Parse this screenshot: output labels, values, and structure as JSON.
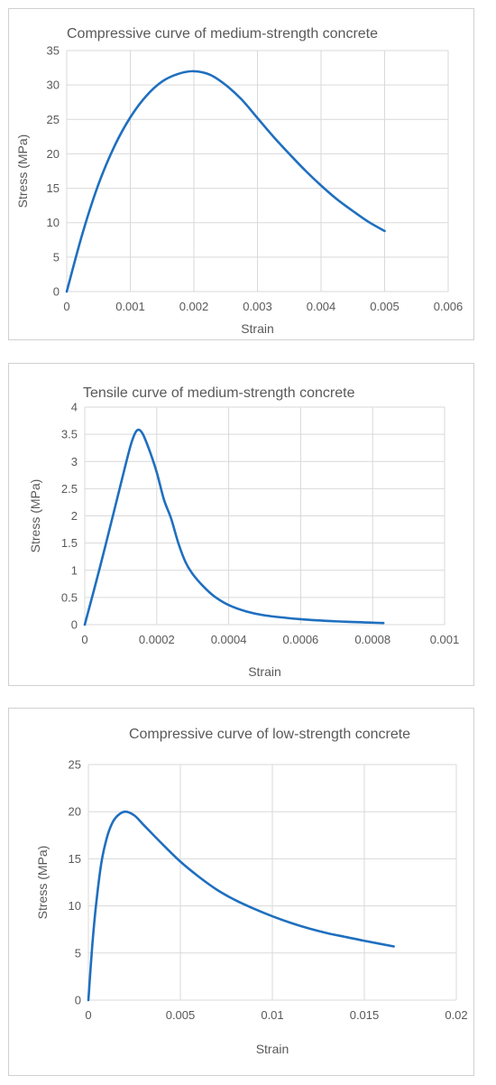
{
  "style": {
    "line_color": "#1f6fbf",
    "grid_color": "#d9d9d9",
    "text_color": "#595959",
    "border_color": "#d0d0d0"
  },
  "chart_data": [
    {
      "type": "line",
      "title": "Compressive curve of medium-strength concrete",
      "xlabel": "Strain",
      "ylabel": "Stress (MPa)",
      "xlim": [
        0,
        0.006
      ],
      "ylim": [
        0,
        35
      ],
      "xticks": [
        "0",
        "0.001",
        "0.002",
        "0.003",
        "0.004",
        "0.005",
        "0.006"
      ],
      "yticks": [
        "0",
        "5",
        "10",
        "15",
        "20",
        "25",
        "30",
        "35"
      ],
      "grid": "vertical-and-horizontal",
      "legend": "none",
      "series": [
        {
          "x": [
            0,
            0.00025,
            0.0005,
            0.00075,
            0.001,
            0.00125,
            0.0015,
            0.00175,
            0.002,
            0.00225,
            0.0025,
            0.00275,
            0.003,
            0.00325,
            0.0035,
            0.00375,
            0.004,
            0.00425,
            0.0045,
            0.00475,
            0.005
          ],
          "y": [
            0,
            8.5,
            15.6,
            21.1,
            25.3,
            28.4,
            30.5,
            31.6,
            32.0,
            31.5,
            30.0,
            27.9,
            25.2,
            22.5,
            20.0,
            17.6,
            15.4,
            13.4,
            11.7,
            10.1,
            8.8
          ]
        }
      ]
    },
    {
      "type": "line",
      "title": "Tensile curve of medium-strength concrete",
      "xlabel": "Strain",
      "ylabel": "Stress (MPa)",
      "xlim": [
        0,
        0.001
      ],
      "ylim": [
        0,
        4
      ],
      "xticks": [
        "0",
        "0.0002",
        "0.0004",
        "0.0006",
        "0.0008",
        "0.001"
      ],
      "yticks": [
        "0",
        "0.5",
        "1",
        "1.5",
        "2",
        "2.5",
        "3",
        "3.5",
        "4"
      ],
      "grid": "vertical-and-horizontal",
      "legend": "none",
      "series": [
        {
          "x": [
            0,
            4e-05,
            8e-05,
            0.00011,
            0.00013,
            0.000145,
            0.00016,
            0.00018,
            0.0002,
            0.00022,
            0.00024,
            0.00026,
            0.00028,
            0.0003,
            0.00033,
            0.00036,
            0.0004,
            0.00045,
            0.0005,
            0.0006,
            0.0007,
            0.00083
          ],
          "y": [
            0,
            1.0,
            2.05,
            2.85,
            3.35,
            3.57,
            3.52,
            3.2,
            2.8,
            2.3,
            1.95,
            1.5,
            1.15,
            0.93,
            0.7,
            0.52,
            0.36,
            0.24,
            0.17,
            0.1,
            0.06,
            0.03
          ]
        }
      ]
    },
    {
      "type": "line",
      "title": "Compressive curve of low-strength concrete",
      "xlabel": "Strain",
      "ylabel": "Stress (MPa)",
      "xlim": [
        0,
        0.02
      ],
      "ylim": [
        0,
        25
      ],
      "xticks": [
        "0",
        "0.005",
        "0.01",
        "0.015",
        "0.02"
      ],
      "yticks": [
        "0",
        "5",
        "10",
        "15",
        "20",
        "25"
      ],
      "grid": "vertical-and-horizontal",
      "legend": "none",
      "series": [
        {
          "x": [
            0,
            0.0002,
            0.0004,
            0.0007,
            0.001,
            0.0013,
            0.0016,
            0.002,
            0.0025,
            0.003,
            0.004,
            0.005,
            0.006,
            0.007,
            0.008,
            0.009,
            0.01,
            0.011,
            0.012,
            0.013,
            0.014,
            0.015,
            0.0166
          ],
          "y": [
            0,
            5.5,
            9.8,
            14.5,
            17.2,
            18.8,
            19.6,
            20.0,
            19.6,
            18.6,
            16.6,
            14.7,
            13.1,
            11.7,
            10.6,
            9.7,
            8.9,
            8.2,
            7.6,
            7.1,
            6.7,
            6.3,
            5.7
          ]
        }
      ]
    }
  ]
}
